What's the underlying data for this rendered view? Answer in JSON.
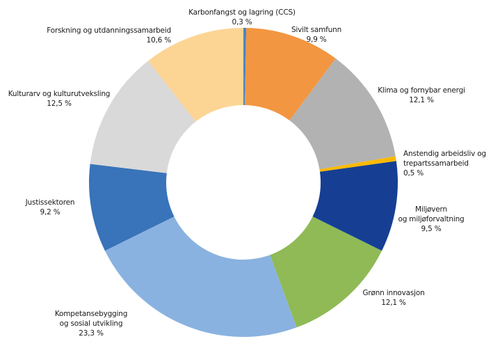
{
  "chart_data": {
    "type": "pie",
    "variant": "donut",
    "title": "",
    "start_angle_deg": 0,
    "direction": "clockwise",
    "inner_radius_ratio": 0.5,
    "value_unit": "%",
    "slices": [
      {
        "label": "Karbonfangst og lagring (CCS)",
        "value": 0.3,
        "value_label": "0,3 %",
        "color": "#4a86c5"
      },
      {
        "label": "Sivilt samfunn",
        "value": 9.9,
        "value_label": "9,9 %",
        "color": "#f39641"
      },
      {
        "label": "Klima og fornybar energi",
        "value": 12.1,
        "value_label": "12,1 %",
        "color": "#b2b2b2"
      },
      {
        "label": "Anstendig arbeidsliv og trepartssamarbeid",
        "value": 0.5,
        "value_label": "0,5 %",
        "color": "#fbba00"
      },
      {
        "label": "Miljøvern og miljøforvaltning",
        "value": 9.5,
        "value_label": "9,5 %",
        "color": "#163f94"
      },
      {
        "label": "Grønn innovasjon",
        "value": 12.1,
        "value_label": "12,1 %",
        "color": "#8fba56"
      },
      {
        "label": "Kompetansebygging og sosial utvikling",
        "value": 23.3,
        "value_label": "23,3 %",
        "color": "#8ab2e0"
      },
      {
        "label": "Justissektoren",
        "value": 9.2,
        "value_label": "9,2 %",
        "color": "#3973b9"
      },
      {
        "label": "Kulturarv og kulturutveksling",
        "value": 12.5,
        "value_label": "12,5 %",
        "color": "#d9d9d9"
      },
      {
        "label": "Forskning og utdanningssamarbeid",
        "value": 10.6,
        "value_label": "10,6 %",
        "color": "#fcd595"
      }
    ]
  },
  "labels": {
    "ccs": {
      "line1": "Karbonfangst og lagring (CCS)",
      "value": "0,3 %"
    },
    "sivilt": {
      "line1": "Sivilt samfunn",
      "value": "9,9 %"
    },
    "klima": {
      "line1": "Klima og fornybar energi",
      "value": "12,1 %"
    },
    "anstendig": {
      "line1": "Anstendig arbeidsliv og",
      "line2": "trepartssamarbeid",
      "value": "0,5 %"
    },
    "miljo": {
      "line1": "Miljøvern",
      "line2": "og miljøforvaltning",
      "value": "9,5 %"
    },
    "gronn": {
      "line1": "Grønn innovasjon",
      "value": "12,1 %"
    },
    "kompetanse": {
      "line1": "Kompetansebygging",
      "line2": "og sosial utvikling",
      "value": "23,3 %"
    },
    "justis": {
      "line1": "Justissektoren",
      "value": "9,2 %"
    },
    "kulturarv": {
      "line1": "Kulturarv og kulturutveksling",
      "value": "12,5 %"
    },
    "forskning": {
      "line1": "Forskning og utdanningssamarbeid",
      "value": "10,6 %"
    }
  }
}
